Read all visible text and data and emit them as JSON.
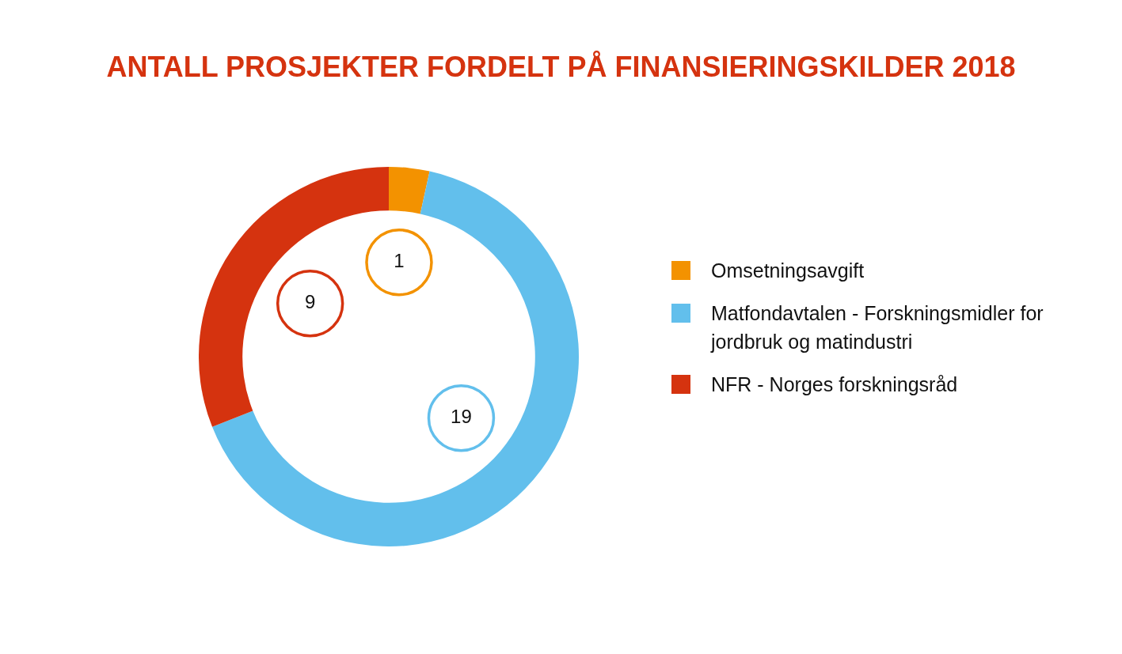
{
  "chart_data": {
    "type": "donut",
    "title": "ANTALL PROSJEKTER FORDELT PÅ FINANSIERINGSKILDER 2018",
    "categories": [
      "Omsetningsavgift",
      "Matfondavtalen - Forskningsmidler for jordbruk og matindustri",
      "NFR - Norges forskningsråd"
    ],
    "values": [
      1,
      19,
      9
    ],
    "colors": [
      "#f39200",
      "#62bfec",
      "#d5330f"
    ],
    "data_labels": true,
    "legend": "right"
  }
}
